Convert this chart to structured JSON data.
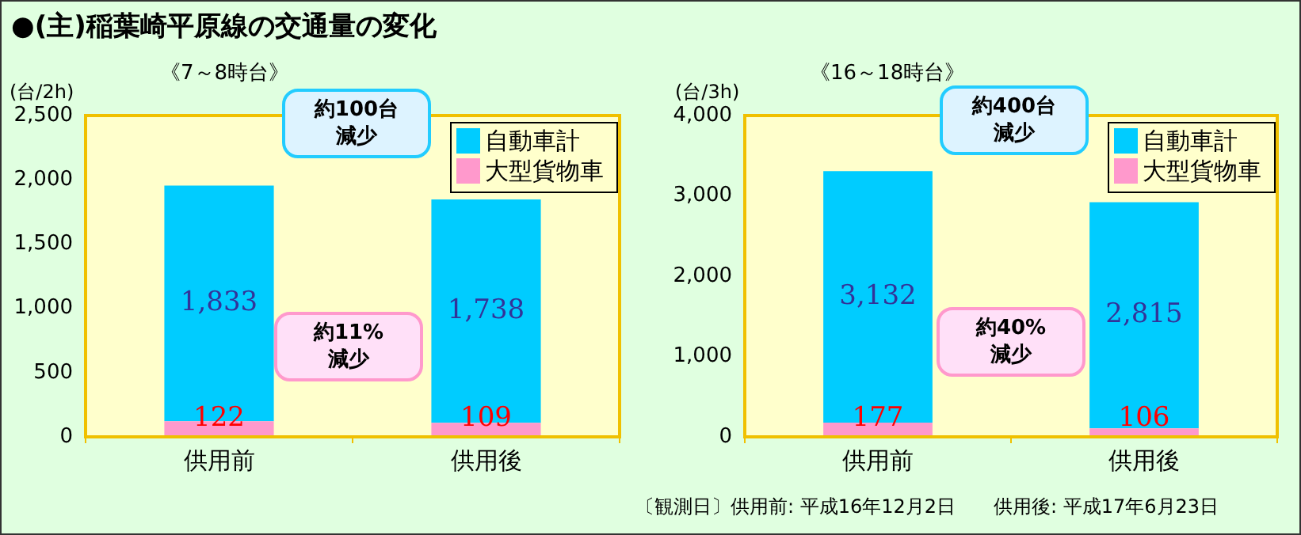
{
  "chart_data": [
    {
      "type": "bar",
      "stacked": true,
      "title": "●(主)稲葉崎平原線の交通量の変化",
      "subtitle": "《7～8時台》",
      "ylabel": "(台/2h)",
      "categories": [
        "供用前",
        "供用後"
      ],
      "series": [
        {
          "name": "大型貨物車",
          "color": "#ff99cc",
          "values": [
            122,
            109
          ],
          "value_labels": [
            "122",
            "109"
          ]
        },
        {
          "name": "自動車計",
          "color": "#00ccff",
          "values": [
            1833,
            1738
          ],
          "value_labels": [
            "1,833",
            "1,738"
          ]
        }
      ],
      "ylim": [
        0,
        2500
      ],
      "yticks": [
        {
          "value": 0,
          "label": "0"
        },
        {
          "value": 500,
          "label": "500"
        },
        {
          "value": 1000,
          "label": "1,000"
        },
        {
          "value": 1500,
          "label": "1,500"
        },
        {
          "value": 2000,
          "label": "2,000"
        },
        {
          "value": 2500,
          "label": "2,500"
        }
      ],
      "grid": false,
      "legend": "top right",
      "annotations": [
        "約100台減少",
        "約11%減少"
      ]
    },
    {
      "type": "bar",
      "stacked": true,
      "subtitle": "《16～18時台》",
      "ylabel": "(台/3h)",
      "categories": [
        "供用前",
        "供用後"
      ],
      "series": [
        {
          "name": "大型貨物車",
          "color": "#ff99cc",
          "values": [
            177,
            106
          ],
          "value_labels": [
            "177",
            "106"
          ]
        },
        {
          "name": "自動車計",
          "color": "#00ccff",
          "values": [
            3132,
            2815
          ],
          "value_labels": [
            "3,132",
            "2,815"
          ]
        }
      ],
      "ylim": [
        0,
        4000
      ],
      "yticks": [
        {
          "value": 0,
          "label": "0"
        },
        {
          "value": 1000,
          "label": "1,000"
        },
        {
          "value": 2000,
          "label": "2,000"
        },
        {
          "value": 3000,
          "label": "3,000"
        },
        {
          "value": 4000,
          "label": "4,000"
        }
      ],
      "grid": false,
      "legend": "top right",
      "annotations": [
        "約400台減少",
        "約40%減少",
        "〔観測日〕供用前: 平成16年12月2日　　供用後: 平成17年6月23日"
      ]
    }
  ]
}
